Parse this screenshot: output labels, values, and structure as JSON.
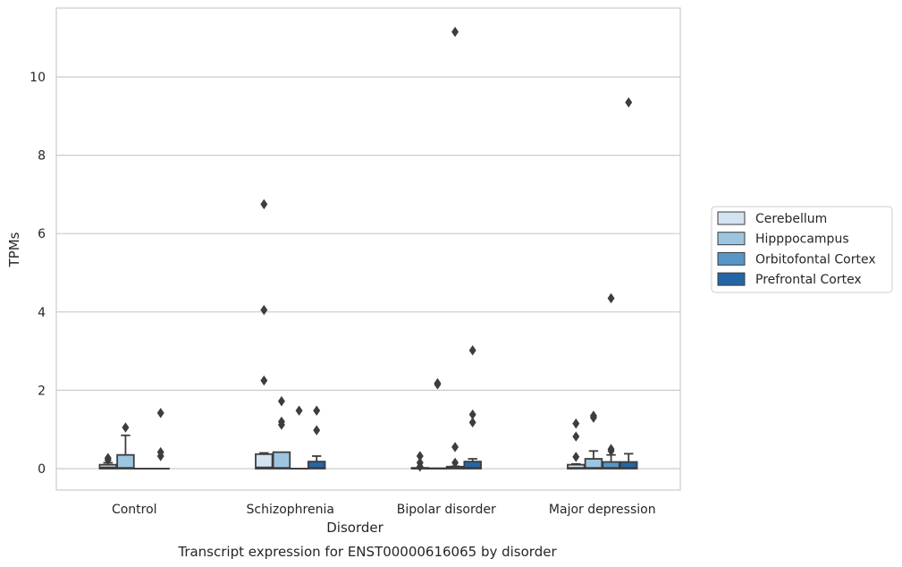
{
  "caption": "Transcript expression for ENST00000616065 by disorder",
  "chart_data": {
    "type": "boxplot",
    "xlabel": "Disorder",
    "ylabel": "TPMs",
    "ylim": [
      -0.55,
      11.75
    ],
    "yticks": [
      0,
      2,
      4,
      6,
      8,
      10
    ],
    "grid": "horizontal",
    "legend_position": "right",
    "categories": [
      "Control",
      "Schizophrenia",
      "Bipolar disorder",
      "Major depression"
    ],
    "series": [
      {
        "name": "Cerebellum",
        "color": "#d4e3f0",
        "boxes": [
          {
            "q1": 0.0,
            "median": 0.03,
            "q3": 0.1,
            "whisker_low": 0.0,
            "whisker_high": 0.15,
            "outliers": [
              0.22,
              0.27
            ]
          },
          {
            "q1": 0.0,
            "median": 0.03,
            "q3": 0.37,
            "whisker_low": 0.0,
            "whisker_high": 0.4,
            "outliers": [
              2.25,
              4.05,
              6.75
            ]
          },
          {
            "q1": 0.0,
            "median": 0.0,
            "q3": 0.02,
            "whisker_low": 0.0,
            "whisker_high": 0.02,
            "outliers": [
              0.05,
              0.15,
              0.32
            ]
          },
          {
            "q1": 0.0,
            "median": 0.02,
            "q3": 0.1,
            "whisker_low": 0.0,
            "whisker_high": 0.12,
            "outliers": [
              0.3,
              0.82,
              1.15
            ]
          }
        ]
      },
      {
        "name": "Hipppocampus",
        "color": "#9dc5e0",
        "boxes": [
          {
            "q1": 0.0,
            "median": 0.02,
            "q3": 0.35,
            "whisker_low": 0.0,
            "whisker_high": 0.85,
            "outliers": [
              1.05
            ]
          },
          {
            "q1": 0.0,
            "median": 0.02,
            "q3": 0.42,
            "whisker_low": 0.0,
            "whisker_high": 0.42,
            "outliers": [
              1.12,
              1.2,
              1.72
            ]
          },
          {
            "q1": 0.0,
            "median": 0.0,
            "q3": 0.01,
            "whisker_low": 0.0,
            "whisker_high": 0.01,
            "outliers": [
              2.15,
              2.18
            ]
          },
          {
            "q1": 0.0,
            "median": 0.02,
            "q3": 0.25,
            "whisker_low": 0.0,
            "whisker_high": 0.45,
            "outliers": [
              1.3,
              1.35
            ]
          }
        ]
      },
      {
        "name": "Orbitofontal Cortex",
        "color": "#5796c6",
        "boxes": [
          {
            "q1": 0.0,
            "median": 0.0,
            "q3": 0.0,
            "whisker_low": 0.0,
            "whisker_high": 0.0,
            "outliers": []
          },
          {
            "q1": 0.0,
            "median": 0.0,
            "q3": 0.0,
            "whisker_low": 0.0,
            "whisker_high": 0.0,
            "outliers": [
              1.48
            ]
          },
          {
            "q1": 0.0,
            "median": 0.02,
            "q3": 0.05,
            "whisker_low": 0.0,
            "whisker_high": 0.06,
            "outliers": [
              0.15,
              0.55,
              11.15
            ]
          },
          {
            "q1": 0.0,
            "median": 0.02,
            "q3": 0.17,
            "whisker_low": 0.0,
            "whisker_high": 0.35,
            "outliers": [
              0.45,
              0.5,
              4.35
            ]
          }
        ]
      },
      {
        "name": "Prefrontal Cortex",
        "color": "#2465a6",
        "boxes": [
          {
            "q1": 0.0,
            "median": 0.0,
            "q3": 0.0,
            "whisker_low": 0.0,
            "whisker_high": 0.0,
            "outliers": [
              0.32,
              0.42,
              1.42
            ]
          },
          {
            "q1": 0.0,
            "median": 0.02,
            "q3": 0.18,
            "whisker_low": 0.0,
            "whisker_high": 0.32,
            "outliers": [
              0.98,
              1.48
            ]
          },
          {
            "q1": 0.0,
            "median": 0.02,
            "q3": 0.18,
            "whisker_low": 0.0,
            "whisker_high": 0.25,
            "outliers": [
              1.18,
              1.38,
              3.02
            ]
          },
          {
            "q1": 0.0,
            "median": 0.02,
            "q3": 0.17,
            "whisker_low": 0.0,
            "whisker_high": 0.38,
            "outliers": [
              9.35
            ]
          }
        ]
      }
    ]
  }
}
